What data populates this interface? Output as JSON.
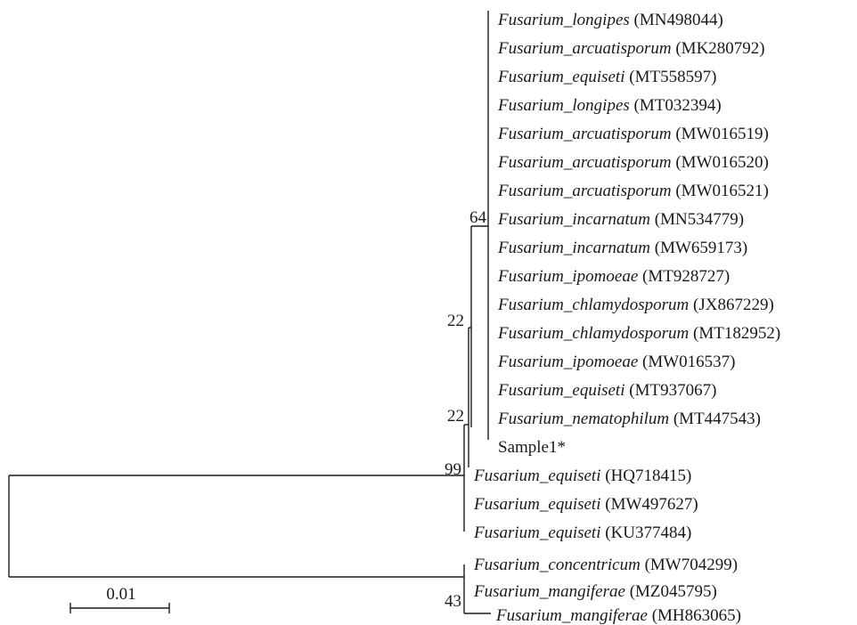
{
  "tree": {
    "taxa": [
      {
        "species": "Fusarium_longipes",
        "accession": " (MN498044)"
      },
      {
        "species": "Fusarium_arcuatisporum",
        "accession": " (MK280792)"
      },
      {
        "species": "Fusarium_equiseti",
        "accession": " (MT558597)"
      },
      {
        "species": "Fusarium_longipes",
        "accession": " (MT032394)"
      },
      {
        "species": "Fusarium_arcuatisporum",
        "accession": " (MW016519)"
      },
      {
        "species": "Fusarium_arcuatisporum",
        "accession": " (MW016520)"
      },
      {
        "species": "Fusarium_arcuatisporum",
        "accession": " (MW016521)"
      },
      {
        "species": "Fusarium_incarnatum",
        "accession": " (MN534779)"
      },
      {
        "species": "Fusarium_incarnatum",
        "accession": " (MW659173)"
      },
      {
        "species": "Fusarium_ipomoeae",
        "accession": " (MT928727)"
      },
      {
        "species": "Fusarium_chlamydosporum",
        "accession": " (JX867229)"
      },
      {
        "species": "Fusarium_chlamydosporum",
        "accession": " (MT182952)"
      },
      {
        "species": "Fusarium_ipomoeae",
        "accession": " (MW016537)"
      },
      {
        "species": "Fusarium_equiseti",
        "accession": " (MT937067)"
      },
      {
        "species": "Fusarium_nematophilum",
        "accession": " (MT447543)"
      },
      {
        "species": "",
        "accession": "Sample1*"
      },
      {
        "species": "Fusarium_equiseti",
        "accession": " (HQ718415)"
      },
      {
        "species": "Fusarium_equiseti",
        "accession": " (MW497627)"
      },
      {
        "species": "Fusarium_equiseti",
        "accession": " (KU377484)"
      },
      {
        "species": "Fusarium_concentricum",
        "accession": " (MW704299)"
      },
      {
        "species": "Fusarium_mangiferae",
        "accession": " (MZ045795)"
      },
      {
        "species": "Fusarium_mangiferae",
        "accession": " (MH863065)"
      }
    ],
    "bootstrap": {
      "node_64": "64",
      "node_22a": "22",
      "node_22b": "22",
      "node_99": "99",
      "node_43": "43"
    },
    "scale_bar": {
      "label": "0.01"
    }
  }
}
